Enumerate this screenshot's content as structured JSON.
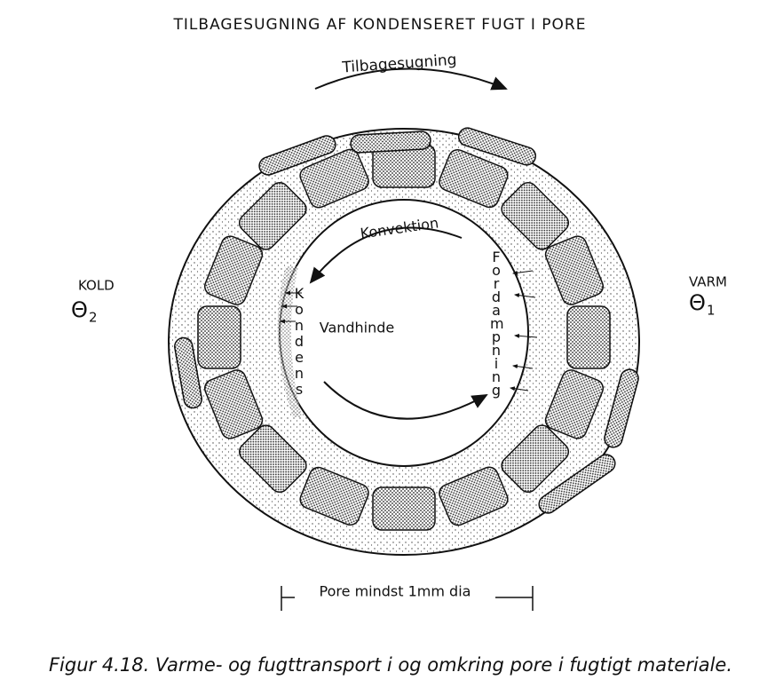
{
  "title": "TILBAGESUGNING AF KONDENSERET FUGT I PORE",
  "labels": {
    "suction": "Tilbagesugning",
    "convection": "Konvektion",
    "condensation": "Kondens",
    "film": "Vandhinde",
    "evaporation": "Fordampning",
    "dimension": "Pore mindst 1mm dia"
  },
  "cold": {
    "label": "KOLD",
    "symbol": "Θ",
    "subscript": "2"
  },
  "warm": {
    "label": "VARM",
    "symbol": "Θ",
    "subscript": "1"
  },
  "caption": "Figur 4.18. Varme- og fugttransport i og omkring pore i fugtigt materiale."
}
